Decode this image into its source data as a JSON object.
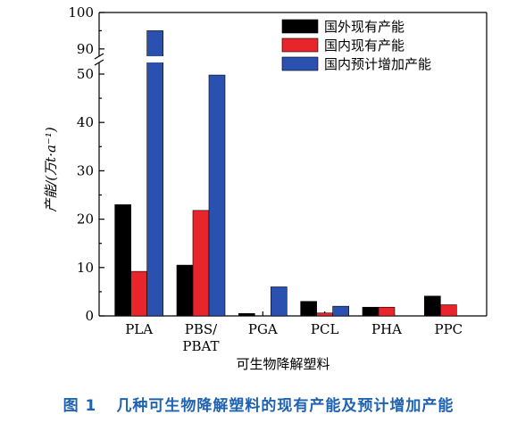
{
  "figure": {
    "caption_label": "图 1",
    "caption_text": "几种可生物降解塑料的现有产能及预计增加产能"
  },
  "chart_data": {
    "type": "bar",
    "categories": [
      "PLA",
      "PBS/\nPBAT",
      "PGA",
      "PCL",
      "PHA",
      "PPC"
    ],
    "category_lines": [
      [
        "PLA"
      ],
      [
        "PBS/",
        "PBAT"
      ],
      [
        "PGA"
      ],
      [
        "PCL"
      ],
      [
        "PHA"
      ],
      [
        "PPC"
      ]
    ],
    "series": [
      {
        "name": "国外现有产能",
        "color": "#000000",
        "values": [
          23,
          10.5,
          0.5,
          3,
          1.8,
          4.1
        ]
      },
      {
        "name": "国内现有产能",
        "color": "#e8252a",
        "values": [
          9.2,
          21.8,
          null,
          0.6,
          1.8,
          2.3
        ]
      },
      {
        "name": "国内预计增加产能",
        "color": "#2a51b0",
        "values": [
          95,
          49.8,
          6,
          2,
          null,
          null
        ]
      }
    ],
    "xlabel": "可生物降解塑料",
    "ylabel": "产能/(万t·a⁻¹)",
    "ylim": [
      0,
      100
    ],
    "axis_break": [
      50,
      88
    ],
    "lower_ticks": [
      0,
      10,
      20,
      30,
      40,
      50
    ],
    "upper_ticks": [
      90,
      100
    ],
    "legend_position": "top-right",
    "grid": false
  }
}
